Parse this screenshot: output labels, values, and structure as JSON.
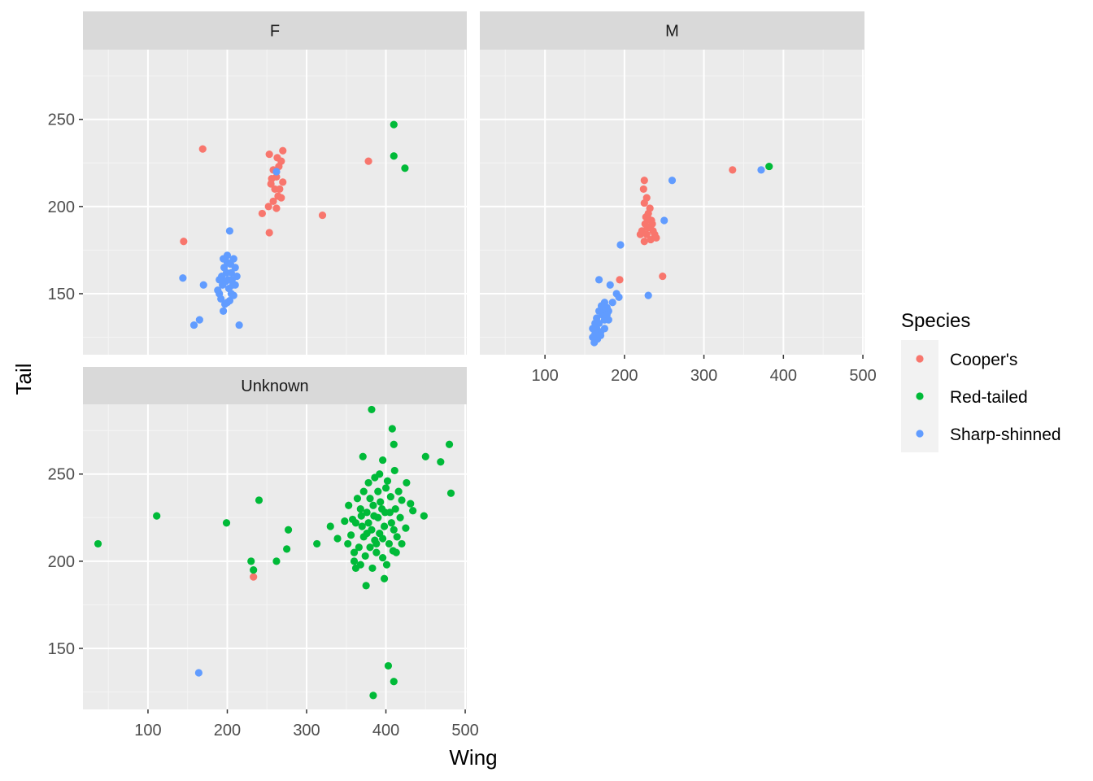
{
  "chart_data": {
    "type": "scatter",
    "xlabel": "Wing",
    "ylabel": "Tail",
    "xlim": [
      18,
      502
    ],
    "ylim": [
      115,
      290
    ],
    "x_ticks": [
      100,
      200,
      300,
      400,
      500
    ],
    "y_ticks": [
      150,
      200,
      250
    ],
    "grid": true,
    "legend": {
      "title": "Species",
      "position": "right",
      "entries": [
        {
          "label": "Cooper's",
          "color": "#F8766D"
        },
        {
          "label": "Red-tailed",
          "color": "#00BA38"
        },
        {
          "label": "Sharp-shinned",
          "color": "#619CFF"
        }
      ]
    },
    "panels": [
      {
        "label": "F",
        "series": [
          {
            "species": "Cooper's",
            "points": [
              [
                145,
                180
              ],
              [
                169,
                233
              ],
              [
                253,
                230
              ],
              [
                263,
                228
              ],
              [
                270,
                232
              ],
              [
                265,
                223
              ],
              [
                268,
                226
              ],
              [
                258,
                221
              ],
              [
                262,
                217
              ],
              [
                270,
                214
              ],
              [
                255,
                213
              ],
              [
                260,
                210
              ],
              [
                264,
                206
              ],
              [
                258,
                203
              ],
              [
                268,
                205
              ],
              [
                252,
                200
              ],
              [
                262,
                199
              ],
              [
                244,
                196
              ],
              [
                253,
                185
              ],
              [
                320,
                195
              ],
              [
                378,
                226
              ],
              [
                262,
                220
              ],
              [
                256,
                216
              ],
              [
                266,
                210
              ]
            ]
          },
          {
            "species": "Red-tailed",
            "points": [
              [
                410,
                247
              ],
              [
                410,
                229
              ],
              [
                424,
                222
              ]
            ]
          },
          {
            "species": "Sharp-shinned",
            "points": [
              [
                203,
                186
              ],
              [
                144,
                159
              ],
              [
                170,
                155
              ],
              [
                158,
                132
              ],
              [
                165,
                135
              ],
              [
                215,
                132
              ],
              [
                190,
                150
              ],
              [
                195,
                140
              ],
              [
                200,
                145
              ],
              [
                205,
                150
              ],
              [
                210,
                155
              ],
              [
                196,
                165
              ],
              [
                200,
                168
              ],
              [
                205,
                162
              ],
              [
                208,
                170
              ],
              [
                193,
                160
              ],
              [
                198,
                157
              ],
              [
                202,
                153
              ],
              [
                206,
                158
              ],
              [
                210,
                165
              ],
              [
                188,
                152
              ],
              [
                192,
                147
              ],
              [
                197,
                144
              ],
              [
                203,
                146
              ],
              [
                208,
                149
              ],
              [
                212,
                160
              ],
              [
                195,
                170
              ],
              [
                200,
                172
              ],
              [
                204,
                167
              ],
              [
                199,
                162
              ],
              [
                190,
                158
              ],
              [
                194,
                155
              ],
              [
                201,
                158
              ],
              [
                207,
                155
              ],
              [
                262,
                220
              ]
            ]
          }
        ]
      },
      {
        "label": "M",
        "series": [
          {
            "species": "Cooper's",
            "points": [
              [
                225,
                215
              ],
              [
                224,
                210
              ],
              [
                228,
                205
              ],
              [
                225,
                202
              ],
              [
                232,
                199
              ],
              [
                230,
                196
              ],
              [
                227,
                194
              ],
              [
                234,
                192
              ],
              [
                226,
                190
              ],
              [
                231,
                188
              ],
              [
                236,
                186
              ],
              [
                222,
                186
              ],
              [
                228,
                184
              ],
              [
                238,
                184
              ],
              [
                233,
                181
              ],
              [
                220,
                184
              ],
              [
                225,
                180
              ],
              [
                240,
                182
              ],
              [
                229,
                188
              ],
              [
                235,
                190
              ],
              [
                194,
                158
              ],
              [
                248,
                160
              ],
              [
                336,
                221
              ],
              [
                230,
                193
              ]
            ]
          },
          {
            "species": "Red-tailed",
            "points": [
              [
                382,
                223
              ]
            ]
          },
          {
            "species": "Sharp-shinned",
            "points": [
              [
                260,
                215
              ],
              [
                372,
                221
              ],
              [
                250,
                192
              ],
              [
                195,
                178
              ],
              [
                230,
                149
              ],
              [
                168,
                158
              ],
              [
                182,
                155
              ],
              [
                190,
                150
              ],
              [
                193,
                148
              ],
              [
                175,
                145
              ],
              [
                178,
                142
              ],
              [
                180,
                140
              ],
              [
                172,
                138
              ],
              [
                175,
                135
              ],
              [
                168,
                133
              ],
              [
                165,
                130
              ],
              [
                170,
                128
              ],
              [
                163,
                127
              ],
              [
                166,
                124
              ],
              [
                162,
                122
              ],
              [
                160,
                130
              ],
              [
                165,
                136
              ],
              [
                172,
                141
              ],
              [
                185,
                145
              ],
              [
                160,
                125
              ],
              [
                175,
                130
              ],
              [
                170,
                126
              ],
              [
                168,
                140
              ],
              [
                178,
                138
              ],
              [
                163,
                133
              ],
              [
                180,
                135
              ],
              [
                171,
                143
              ]
            ]
          }
        ]
      },
      {
        "label": "Unknown",
        "series": [
          {
            "species": "Cooper's",
            "points": [
              [
                233,
                191
              ]
            ]
          },
          {
            "species": "Red-tailed",
            "points": [
              [
                37,
                210
              ],
              [
                111,
                226
              ],
              [
                199,
                222
              ],
              [
                240,
                235
              ],
              [
                230,
                200
              ],
              [
                233,
                195
              ],
              [
                262,
                200
              ],
              [
                275,
                207
              ],
              [
                277,
                218
              ],
              [
                313,
                210
              ],
              [
                330,
                220
              ],
              [
                339,
                213
              ],
              [
                382,
                287
              ],
              [
                408,
                276
              ],
              [
                410,
                267
              ],
              [
                450,
                260
              ],
              [
                469,
                257
              ],
              [
                480,
                267
              ],
              [
                482,
                239
              ],
              [
                448,
                226
              ],
              [
                434,
                229
              ],
              [
                425,
                219
              ],
              [
                420,
                210
              ],
              [
                413,
                205
              ],
              [
                384,
                123
              ],
              [
                403,
                140
              ],
              [
                410,
                131
              ],
              [
                375,
                186
              ],
              [
                398,
                190
              ],
              [
                360,
                205
              ],
              [
                352,
                210
              ],
              [
                356,
                215
              ],
              [
                362,
                222
              ],
              [
                368,
                230
              ],
              [
                372,
                240
              ],
              [
                378,
                245
              ],
              [
                386,
                248
              ],
              [
                392,
                250
              ],
              [
                400,
                242
              ],
              [
                406,
                237
              ],
              [
                412,
                230
              ],
              [
                418,
                225
              ],
              [
                398,
                220
              ],
              [
                392,
                216
              ],
              [
                386,
                212
              ],
              [
                380,
                208
              ],
              [
                374,
                203
              ],
              [
                368,
                198
              ],
              [
                362,
                196
              ],
              [
                390,
                225
              ],
              [
                395,
                230
              ],
              [
                384,
                232
              ],
              [
                376,
                228
              ],
              [
                370,
                220
              ],
              [
                382,
                218
              ],
              [
                388,
                205
              ],
              [
                396,
                202
              ],
              [
                404,
                210
              ],
              [
                410,
                218
              ],
              [
                416,
                240
              ],
              [
                402,
                246
              ],
              [
                390,
                240
              ],
              [
                380,
                236
              ],
              [
                372,
                214
              ],
              [
                366,
                208
              ],
              [
                358,
                224
              ],
              [
                364,
                236
              ],
              [
                378,
                222
              ],
              [
                385,
                226
              ],
              [
                393,
                234
              ],
              [
                399,
                228
              ],
              [
                407,
                222
              ],
              [
                414,
                214
              ],
              [
                420,
                235
              ],
              [
                426,
                245
              ],
              [
                431,
                233
              ],
              [
                411,
                252
              ],
              [
                396,
                258
              ],
              [
                371,
                260
              ],
              [
                353,
                232
              ],
              [
                348,
                223
              ],
              [
                360,
                200
              ],
              [
                383,
                196
              ],
              [
                401,
                198
              ],
              [
                409,
                206
              ],
              [
                388,
                210
              ],
              [
                376,
                216
              ],
              [
                369,
                226
              ],
              [
                396,
                213
              ],
              [
                405,
                228
              ]
            ]
          },
          {
            "species": "Sharp-shinned",
            "points": [
              [
                164,
                136
              ]
            ]
          }
        ]
      }
    ]
  }
}
